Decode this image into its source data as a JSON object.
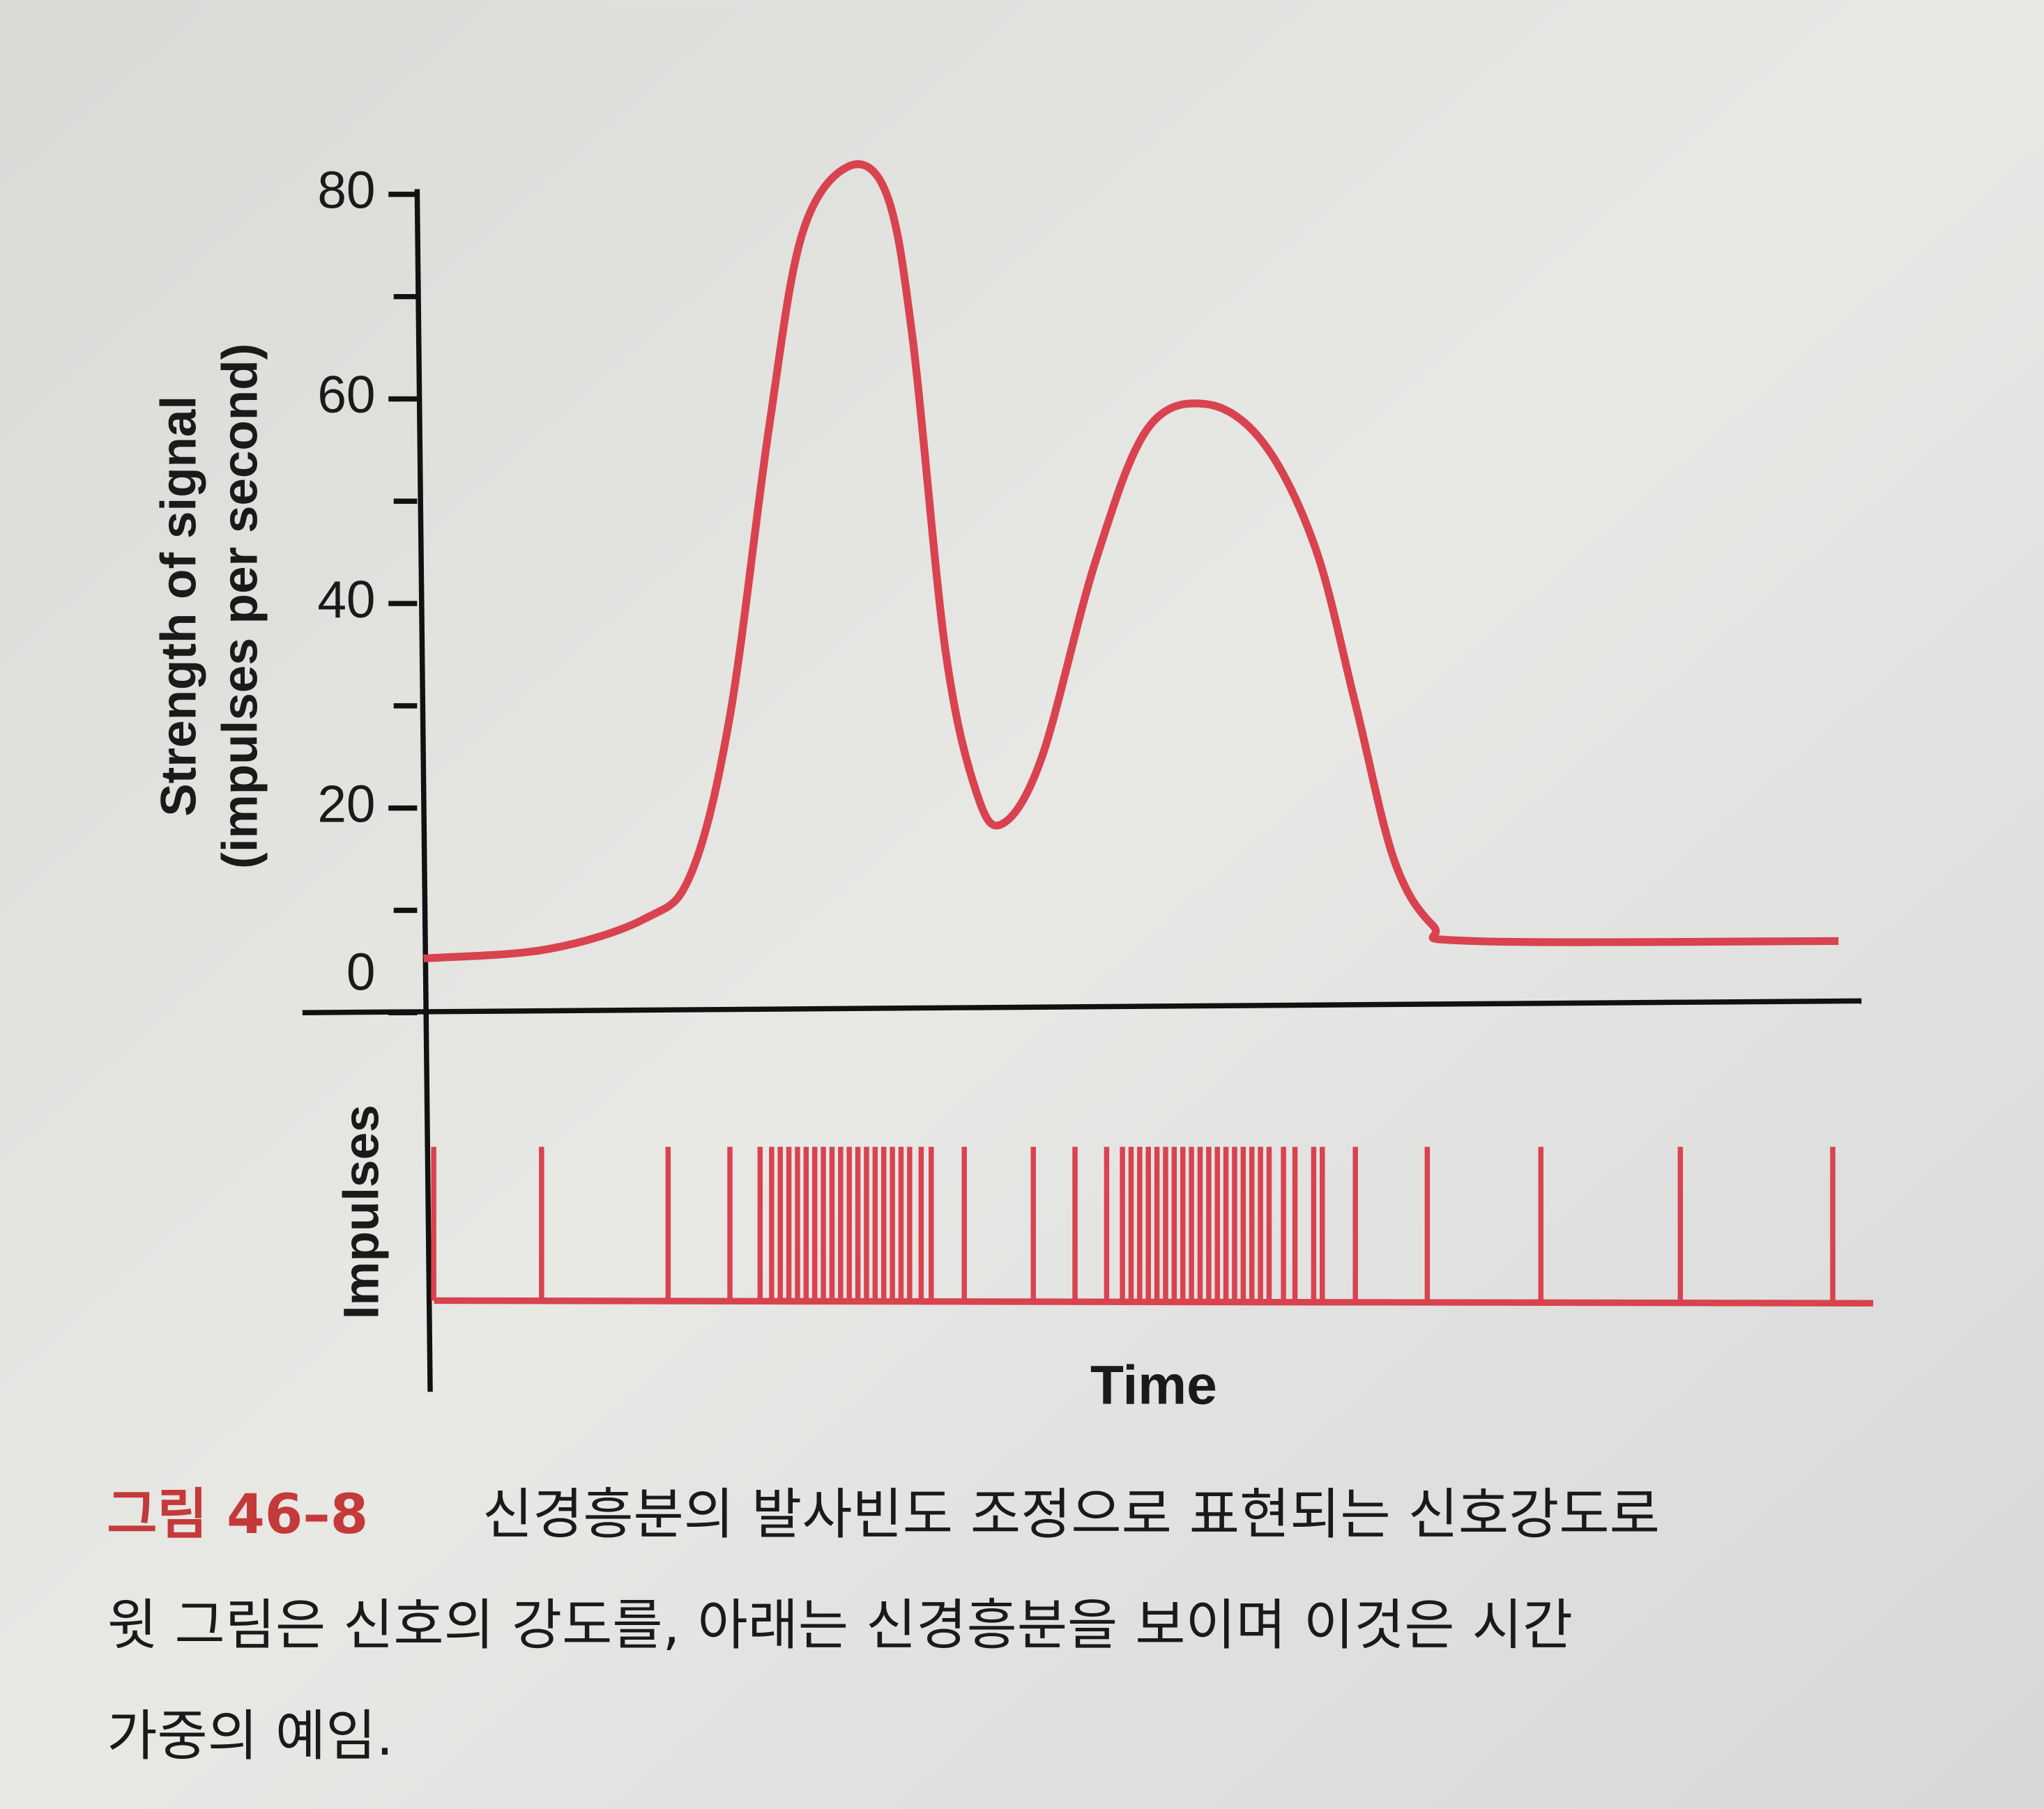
{
  "chart_data": {
    "type": "line",
    "ylabel": [
      "Strength of signal",
      "(impulses per second)"
    ],
    "xlabel": "Time",
    "color": "#d8434f",
    "xlim": [
      0,
      100
    ],
    "ylim": [
      0,
      80
    ],
    "yticks": [
      0,
      20,
      40,
      60,
      80
    ],
    "yminor_ticks": [
      10,
      30,
      50,
      70
    ],
    "x": [
      0,
      8.6,
      15.4,
      18.6,
      21.3,
      24,
      26.3,
      29.5,
      32.2,
      34,
      36.3,
      38.5,
      40.3,
      43,
      46.7,
      50.3,
      54.4,
      58.4,
      62,
      64.8,
      67.5,
      70.2,
      73,
      98.4
    ],
    "values": [
      5.3,
      6.2,
      9.2,
      13.6,
      29,
      57,
      76,
      82.7,
      80,
      66,
      35.3,
      21.3,
      18.5,
      25,
      44,
      57,
      59.5,
      55.7,
      45.5,
      30.2,
      14.9,
      8.5,
      7,
      7
    ],
    "impulses": {
      "label": "Impulses",
      "x": [
        0.7,
        8.2,
        17.0,
        21.3,
        23.4,
        24.2,
        24.8,
        25.4,
        26.0,
        26.6,
        27.2,
        27.8,
        28.4,
        29.0,
        29.6,
        30.2,
        30.8,
        31.4,
        32.0,
        32.6,
        33.2,
        33.8,
        34.6,
        35.3,
        37.6,
        42.4,
        45.3,
        47.5,
        48.6,
        49.2,
        49.8,
        50.4,
        51.0,
        51.6,
        52.2,
        52.8,
        53.4,
        54.0,
        54.6,
        55.2,
        55.8,
        56.4,
        57.0,
        57.6,
        58.2,
        58.8,
        59.8,
        60.6,
        61.9,
        62.5,
        64.8,
        69.8,
        77.7,
        87.4,
        98.0
      ]
    }
  },
  "caption": {
    "figure": "그림 46–8",
    "lines": [
      "신경흥분의 발사빈도 조정으로 표현되는 신호강도로",
      "윗 그림은 신호의 강도를, 아래는 신경흥분을 보이며 이것은 시간",
      "가중의 예임."
    ]
  }
}
